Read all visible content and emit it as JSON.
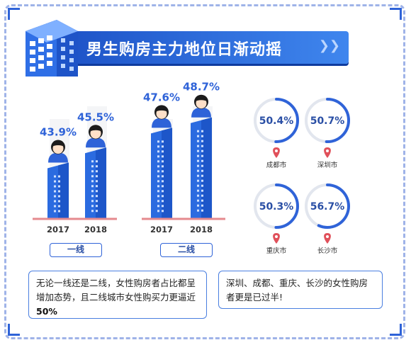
{
  "header": {
    "title": "男生购房主力地位日渐动摇"
  },
  "chart_data": [
    {
      "type": "bar",
      "group_label": "一线",
      "categories": [
        "2017",
        "2018"
      ],
      "values": [
        43.9,
        45.5
      ],
      "value_labels": [
        "43.9%",
        "45.5%"
      ],
      "unit": "%"
    },
    {
      "type": "bar",
      "group_label": "二线",
      "categories": [
        "2017",
        "2018"
      ],
      "values": [
        47.6,
        48.7
      ],
      "value_labels": [
        "47.6%",
        "48.7%"
      ],
      "unit": "%"
    },
    {
      "type": "pie",
      "items": [
        {
          "city": "成都市",
          "value": 50.4,
          "label": "50.4%"
        },
        {
          "city": "深圳市",
          "value": 50.7,
          "label": "50.7%"
        },
        {
          "city": "重庆市",
          "value": 50.3,
          "label": "50.3%"
        },
        {
          "city": "长沙市",
          "value": 56.7,
          "label": "56.7%"
        }
      ]
    }
  ],
  "captions": {
    "left_text": "无论一线还是二线，女性购房者占比都呈增加态势，且二线城市女性购买力更逼近",
    "left_bold": "50%",
    "right_text": "深圳、成都、重庆、长沙的女性购房者更是已过半!"
  },
  "colors": {
    "accent": "#2f63d8",
    "bar": "#2b6be0",
    "ring_track": "#e2e6ee",
    "ring_fill": "#2f63d8",
    "pin": "#e0505a",
    "baseline": "#e58a8e"
  }
}
